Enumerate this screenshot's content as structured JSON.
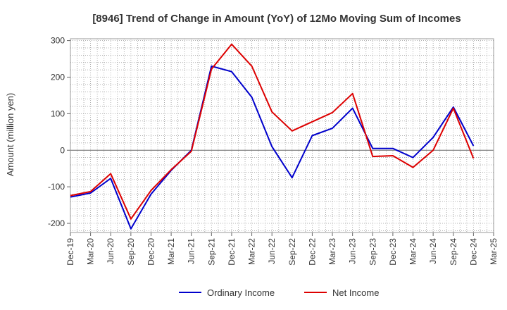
{
  "chart_data": {
    "type": "line",
    "title": "[8946]  Trend of Change in Amount (YoY) of 12Mo Moving Sum of Incomes",
    "xlabel": "",
    "ylabel": "Amount (million yen)",
    "ylim": [
      -225,
      305
    ],
    "yticks": [
      300,
      200,
      100,
      0,
      -100,
      -200
    ],
    "grid": true,
    "legend_position": "bottom-center",
    "categories": [
      "Dec-19",
      "Mar-20",
      "Jun-20",
      "Sep-20",
      "Dec-20",
      "Mar-21",
      "Jun-21",
      "Sep-21",
      "Dec-21",
      "Mar-22",
      "Jun-22",
      "Sep-22",
      "Dec-22",
      "Mar-23",
      "Jun-23",
      "Sep-23",
      "Dec-23",
      "Mar-24",
      "Jun-24",
      "Sep-24",
      "Dec-24",
      "Mar-25"
    ],
    "series": [
      {
        "name": "Ordinary Income",
        "color": "#0000cc",
        "values": [
          -128,
          -117,
          -77,
          -215,
          -120,
          -55,
          0,
          230,
          215,
          145,
          10,
          -75,
          40,
          60,
          115,
          5,
          5,
          -20,
          35,
          118,
          12,
          null
        ]
      },
      {
        "name": "Net Income",
        "color": "#dd0000",
        "values": [
          -124,
          -113,
          -64,
          -188,
          -110,
          -53,
          -3,
          222,
          290,
          230,
          105,
          53,
          78,
          103,
          155,
          -17,
          -15,
          -47,
          0,
          115,
          -22,
          null
        ]
      }
    ]
  }
}
